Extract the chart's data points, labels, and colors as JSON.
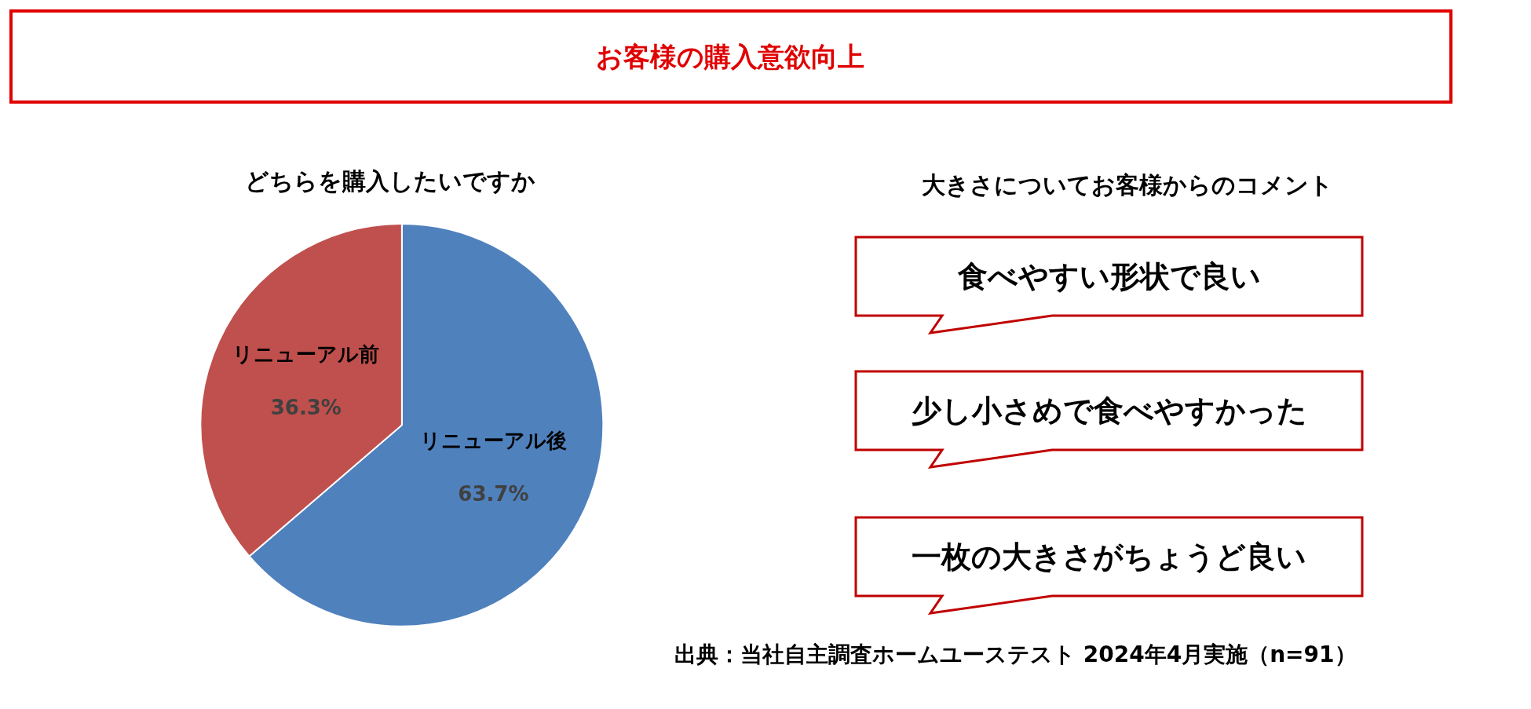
{
  "chart_data": [
    {
      "type": "pie",
      "title": "お客様の購入意欲向上",
      "subtitle": "どちらを購入したいですか",
      "categories": [
        "リニューアル後",
        "リニューアル前"
      ],
      "values": [
        63.7,
        36.3
      ],
      "colors": [
        "#4f81bd",
        "#c0504d"
      ],
      "value_labels": [
        "63.7%",
        "36.3%"
      ],
      "annotations": [
        "出典：当社自主調査ホームユーステスト 2024年4月実施（n=91）"
      ]
    },
    {
      "type": "other",
      "title": "大きさについてお客様からのコメント",
      "annotations": [
        "食べやすい形状で良い",
        "少し小さめで食べやすかった",
        "一枚の大きさがちょうど良い"
      ]
    }
  ]
}
